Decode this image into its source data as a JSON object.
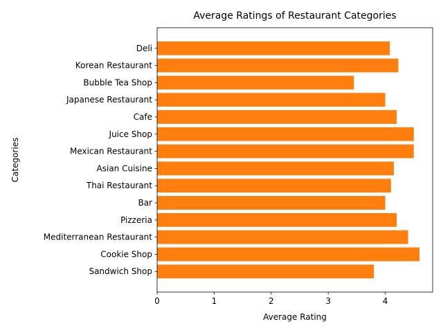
{
  "chart_data": {
    "type": "bar",
    "orientation": "horizontal",
    "title": "Average Ratings of Restaurant Categories",
    "xlabel": "Average Rating",
    "ylabel": "Categories",
    "categories": [
      "Deli",
      "Korean Restaurant",
      "Bubble Tea Shop",
      "Japanese Restaurant",
      "Cafe",
      "Juice Shop",
      "Mexican Restaurant",
      "Asian Cuisine ",
      "Thai Restaurant",
      "Bar",
      "Pizzeria",
      "Mediterranean Restaurant",
      "Cookie Shop",
      "Sandwich Shop"
    ],
    "values": [
      4.08,
      4.23,
      3.45,
      4.0,
      4.2,
      4.5,
      4.5,
      4.15,
      4.1,
      4.0,
      4.2,
      4.4,
      4.6,
      3.8
    ],
    "xlim": [
      0,
      4.83
    ],
    "xticks": [
      0,
      1,
      2,
      3,
      4
    ],
    "bar_color": "#ff7f0e",
    "grid": false,
    "legend": "none"
  }
}
